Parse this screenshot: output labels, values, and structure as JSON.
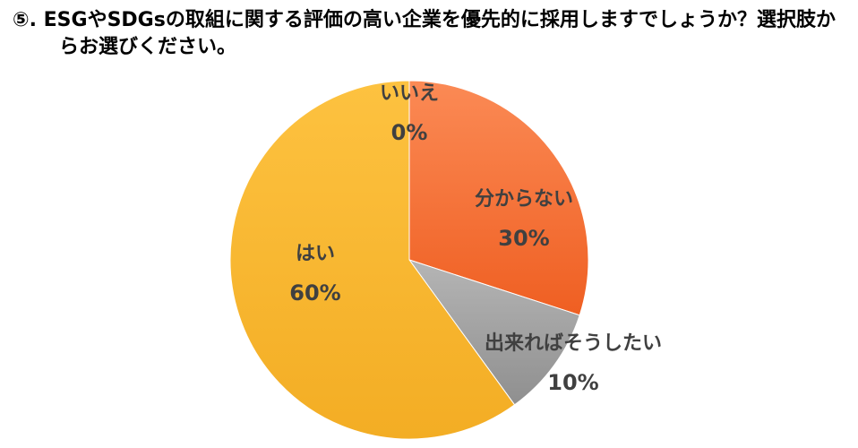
{
  "chart_data": {
    "type": "pie",
    "title": "⑤. ESGやSDGsの取組に関する評価の高い企業を優先的に採用しますでしょうか？選択肢からお選びください。",
    "categories": [
      "いいえ",
      "分からない",
      "出来ればそうしたい",
      "はい"
    ],
    "values": [
      0,
      30,
      10,
      60
    ],
    "value_labels": [
      "0%",
      "30%",
      "10%",
      "60%"
    ],
    "colors": [
      "#c0c0c0",
      "#f4733a",
      "#a6a6a6",
      "#fbb836"
    ]
  }
}
